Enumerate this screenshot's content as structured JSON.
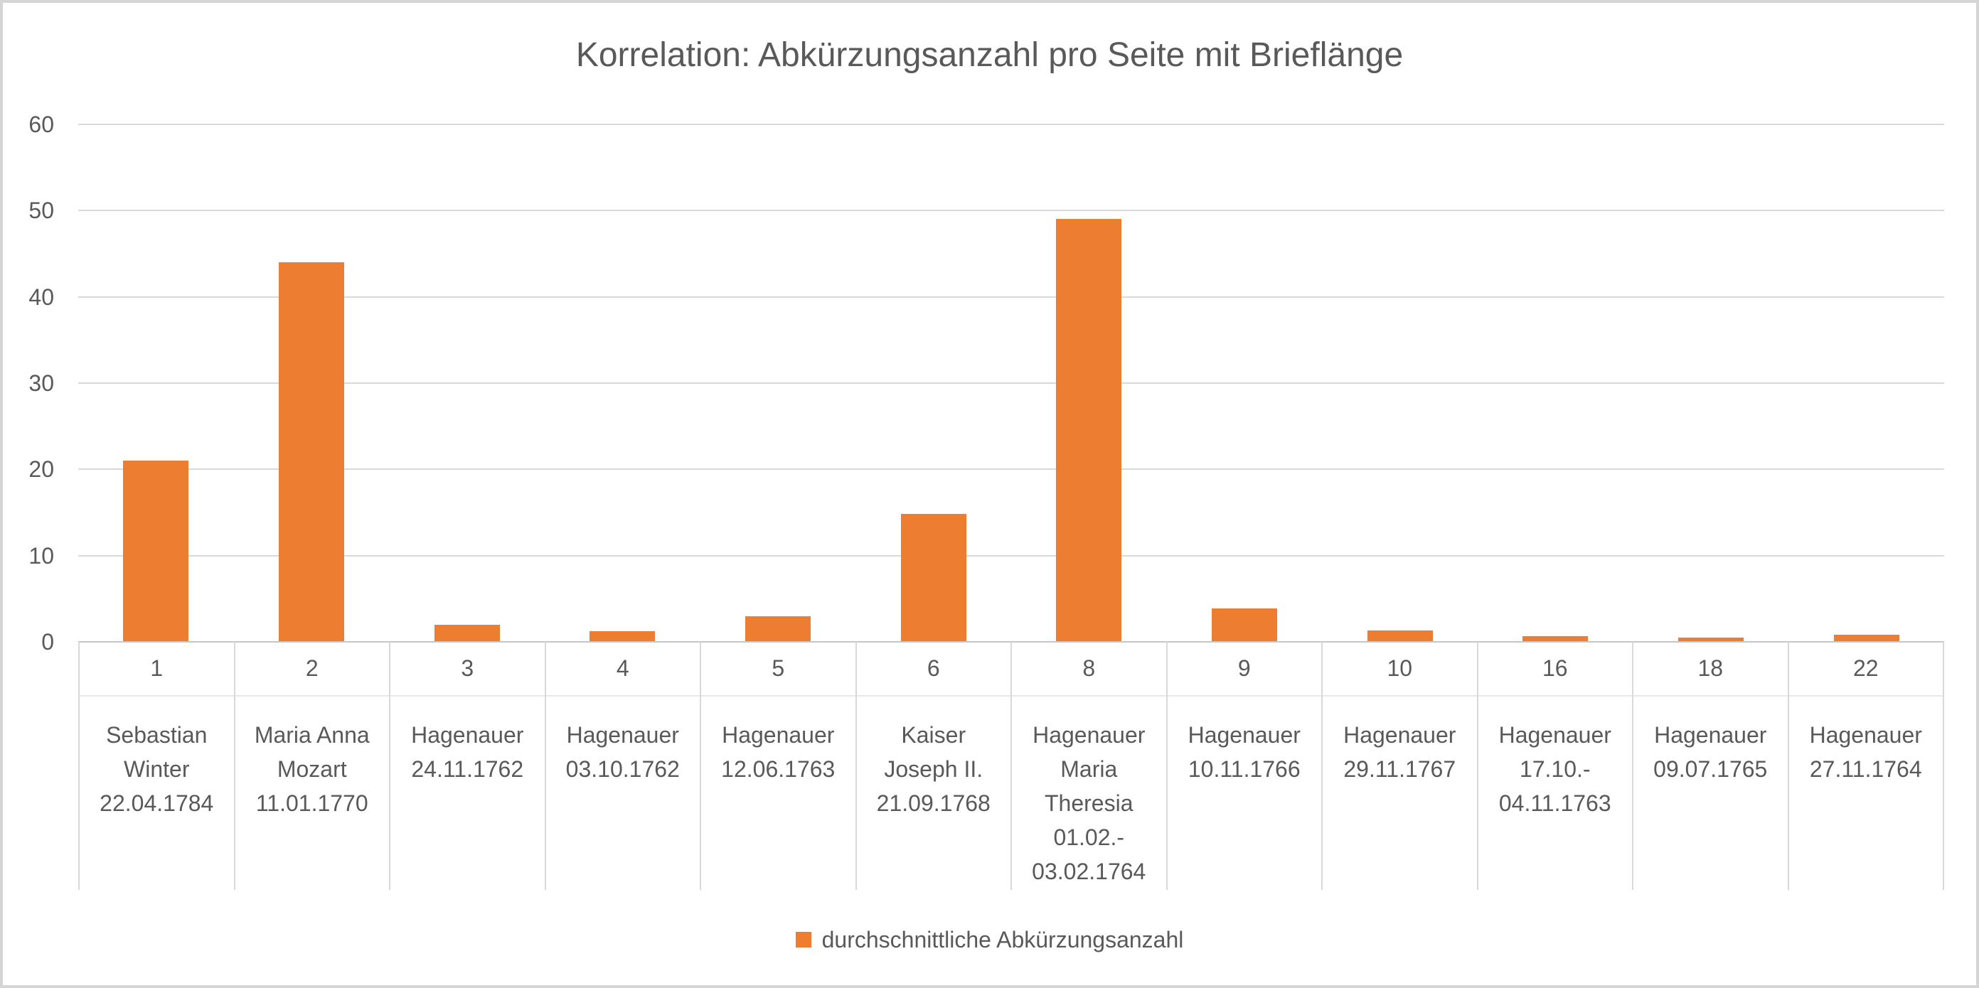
{
  "chart_data": {
    "type": "bar",
    "title": "Korrelation: Abkürzungsanzahl pro Seite mit Brieflänge",
    "categories": [
      {
        "number": "1",
        "label": "Sebastian\nWinter\n22.04.1784"
      },
      {
        "number": "2",
        "label": "Maria Anna\nMozart\n11.01.1770"
      },
      {
        "number": "3",
        "label": "Hagenauer\n24.11.1762"
      },
      {
        "number": "4",
        "label": "Hagenauer\n03.10.1762"
      },
      {
        "number": "5",
        "label": "Hagenauer\n12.06.1763"
      },
      {
        "number": "6",
        "label": "Kaiser\nJoseph II.\n21.09.1768"
      },
      {
        "number": "8",
        "label": "Hagenauer\nMaria\nTheresia\n01.02.-\n03.02.1764"
      },
      {
        "number": "9",
        "label": "Hagenauer\n10.11.1766"
      },
      {
        "number": "10",
        "label": "Hagenauer\n29.11.1767"
      },
      {
        "number": "16",
        "label": "Hagenauer\n17.10.-\n04.11.1763"
      },
      {
        "number": "18",
        "label": "Hagenauer\n09.07.1765"
      },
      {
        "number": "22",
        "label": "Hagenauer\n27.11.1764"
      }
    ],
    "series": [
      {
        "name": "durchschnittliche Abkürzungsanzahl",
        "color": "#ed7d31",
        "values": [
          21,
          44,
          2,
          1.2,
          3,
          14.8,
          49,
          3.9,
          1.3,
          0.7,
          0.5,
          0.8
        ]
      }
    ],
    "y_axis": {
      "min": 0,
      "max": 60,
      "tick_step": 10,
      "ticks": [
        0,
        10,
        20,
        30,
        40,
        50,
        60
      ]
    },
    "grid": true,
    "legend_position": "bottom"
  },
  "legend": {
    "marker_color": "#ed7d31",
    "label": "durchschnittliche Abkürzungsanzahl"
  },
  "colors": {
    "bar": "#ed7d31",
    "gridline": "#d9d9d9",
    "axis_line": "#c6c6c6",
    "text": "#595959",
    "frame_border": "#d5d5d5",
    "background": "#ffffff"
  }
}
